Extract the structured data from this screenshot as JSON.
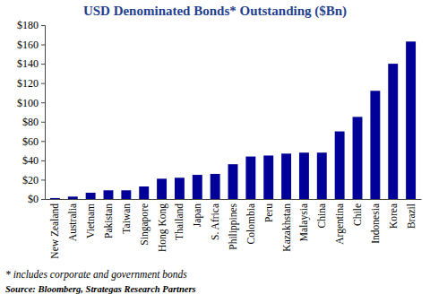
{
  "chart_data": {
    "type": "bar",
    "title": "USD Denominated Bonds* Outstanding ($Bn)",
    "categories": [
      "New Zealand",
      "Australia",
      "Vietnam",
      "Pakistan",
      "Taiwan",
      "Singapore",
      "Hong Kong",
      "Thailand",
      "Japan",
      "S. Africa",
      "Philippines",
      "Colombia",
      "Peru",
      "Kazakhstan",
      "Malaysia",
      "China",
      "Argentina",
      "Chile",
      "Indonesia",
      "Korea",
      "Brazil"
    ],
    "values": [
      1,
      2.5,
      6.5,
      9,
      9,
      13,
      21,
      22,
      25,
      26,
      36,
      44,
      45,
      47,
      48,
      48,
      70,
      85,
      112,
      140,
      163
    ],
    "color": "#000099",
    "ylim": [
      0,
      180
    ],
    "yticks": [
      {
        "value": 0,
        "label": "$0"
      },
      {
        "value": 20,
        "label": "$20"
      },
      {
        "value": 40,
        "label": "$40"
      },
      {
        "value": 60,
        "label": "$60"
      },
      {
        "value": 80,
        "label": "$80"
      },
      {
        "value": 100,
        "label": "$100"
      },
      {
        "value": 120,
        "label": "$120"
      },
      {
        "value": 140,
        "label": "$140"
      },
      {
        "value": 160,
        "label": "$160"
      },
      {
        "value": 180,
        "label": "$180"
      }
    ],
    "grid": false,
    "annotations": [
      "* includes corporate and government bonds",
      "Source: Bloomberg, Strategas Research Partners"
    ]
  }
}
